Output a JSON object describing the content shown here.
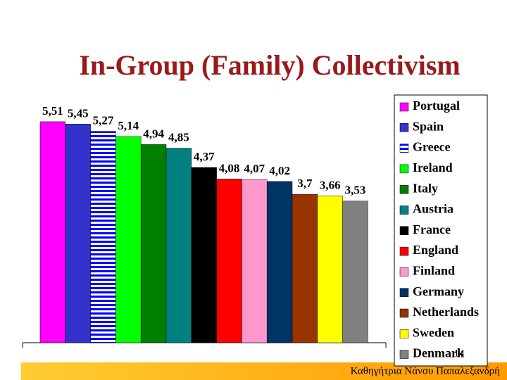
{
  "chart_data": {
    "type": "bar",
    "title": "In-Group (Family) Collectivism",
    "categories": [
      "Portugal",
      "Spain",
      "Greece",
      "Ireland",
      "Italy",
      "Austria",
      "France",
      "England",
      "Finland",
      "Germany",
      "Netherlands",
      "Sweden",
      "Denmark"
    ],
    "values": [
      5.51,
      5.45,
      5.27,
      5.14,
      4.94,
      4.85,
      4.37,
      4.08,
      4.07,
      4.02,
      3.7,
      3.66,
      3.53
    ],
    "value_labels": [
      "5,51",
      "5,45",
      "5,27",
      "5,14",
      "4,94",
      "4,85",
      "4,37",
      "4,08",
      "4,07",
      "4,02",
      "3,7",
      "3,66",
      "3,53"
    ],
    "colors": [
      "#ff00ff",
      "#3333cc",
      "#0000ff",
      "#00ff00",
      "#008000",
      "#008080",
      "#000000",
      "#ff0000",
      "#ff99cc",
      "#003366",
      "#993300",
      "#ffff00",
      "#808080"
    ],
    "striped": [
      2
    ],
    "ylim": [
      0,
      6
    ],
    "legend": "right",
    "slide_number": "14",
    "footer": "Καθηγήτρια Νάνσυ Παπαλεξανδρή"
  }
}
